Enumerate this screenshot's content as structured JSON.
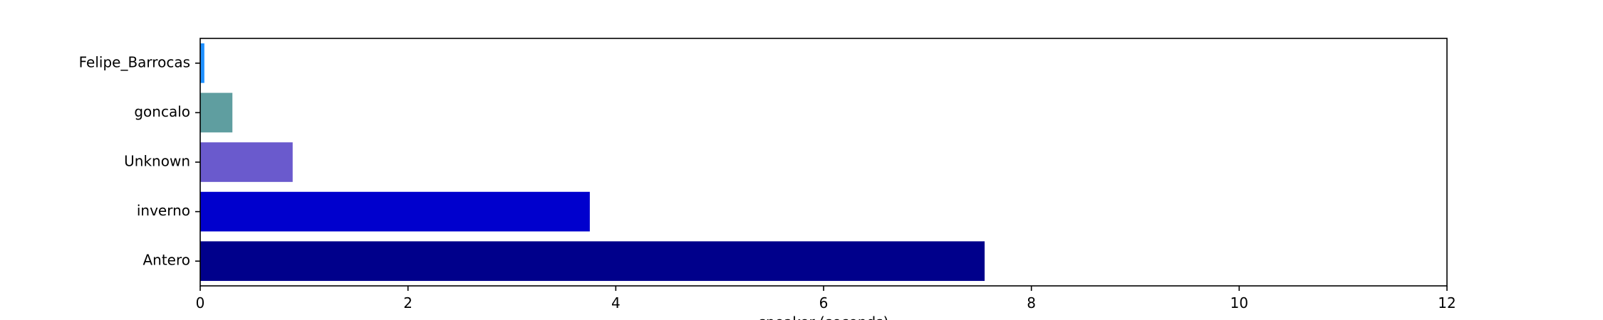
{
  "chart_data": {
    "type": "bar",
    "orientation": "horizontal",
    "title": "",
    "xlabel": "speaker (seconds)",
    "ylabel": "",
    "xlim": [
      0,
      12
    ],
    "xticks": [
      "0",
      "2",
      "4",
      "6",
      "8",
      "10",
      "12"
    ],
    "categories": [
      "Felipe_Barrocas",
      "goncalo",
      "Unknown",
      "inverno",
      "Antero"
    ],
    "values": [
      0.04,
      0.31,
      0.89,
      3.75,
      7.55
    ],
    "colors": [
      "#1e90ff",
      "#5f9ea0",
      "#6a5acd",
      "#0000cd",
      "#00008b"
    ],
    "grid": false,
    "legend": "none"
  }
}
